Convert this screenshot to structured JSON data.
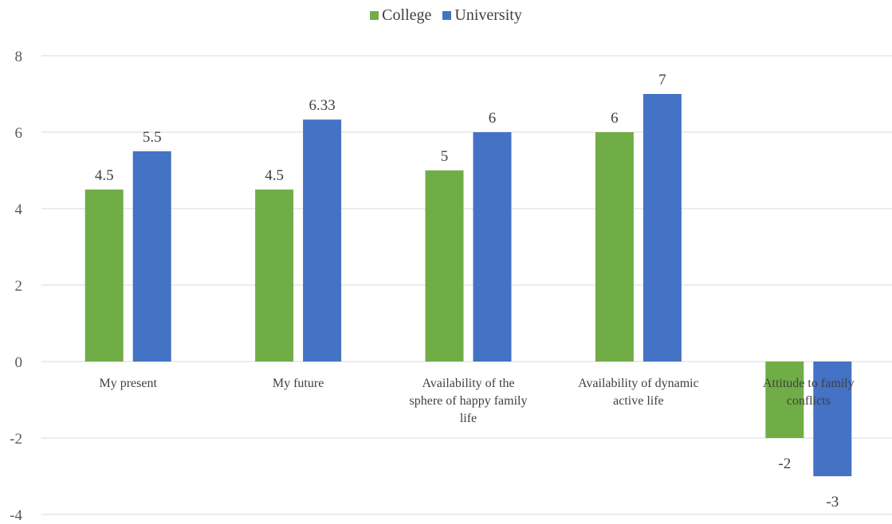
{
  "chart_data": {
    "type": "bar",
    "title": "",
    "xlabel": "",
    "ylabel": "",
    "categories": [
      "My present",
      "My future",
      "Availability of the sphere of happy family life",
      "Availability of dynamic active life",
      "Attitude to family conflicts"
    ],
    "category_lines": [
      [
        "My present"
      ],
      [
        "My future"
      ],
      [
        "Availability of the",
        "sphere of happy family",
        "life"
      ],
      [
        "Availability of dynamic",
        "active life"
      ],
      [
        "Attitude to family",
        "conflicts"
      ]
    ],
    "series": [
      {
        "name": "College",
        "color": "#70ad47",
        "values": [
          4.5,
          4.5,
          5,
          6,
          -2
        ],
        "labels": [
          "4.5",
          "4.5",
          "5",
          "6",
          "-2"
        ]
      },
      {
        "name": "University",
        "color": "#4472c4",
        "values": [
          5.5,
          6.33,
          6,
          7,
          -3
        ],
        "labels": [
          "5.5",
          "6.33",
          "6",
          "7",
          "-3"
        ]
      }
    ],
    "ylim": [
      -4,
      8
    ],
    "yticks": [
      "-4",
      "-2",
      "0",
      "2",
      "4",
      "6",
      "8"
    ],
    "grid": "horizontal",
    "legend_position": "top"
  }
}
